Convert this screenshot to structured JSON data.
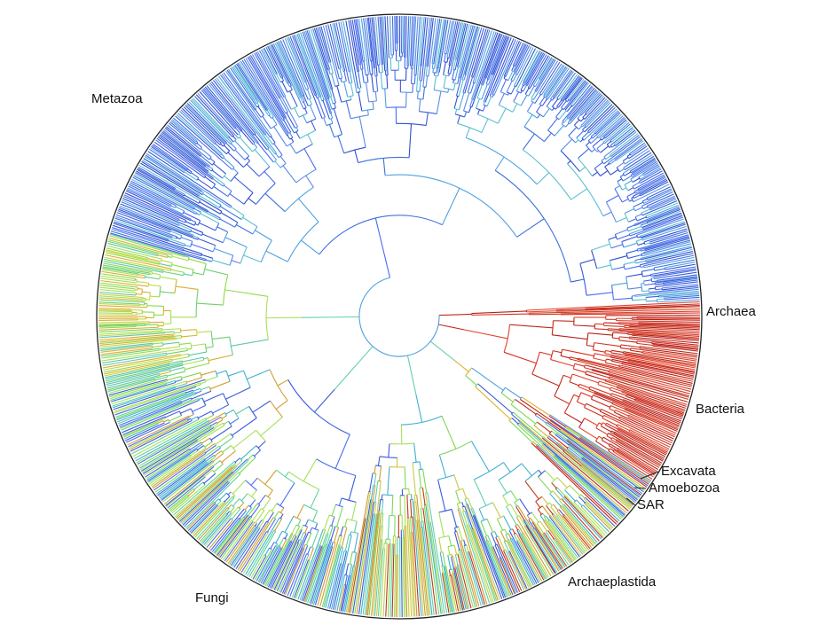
{
  "clades": [
    "Metazoa",
    "Archaea",
    "Bacteria",
    "Excavata",
    "Amoebozoa",
    "SAR",
    "Archaeplastida",
    "Fungi"
  ]
}
